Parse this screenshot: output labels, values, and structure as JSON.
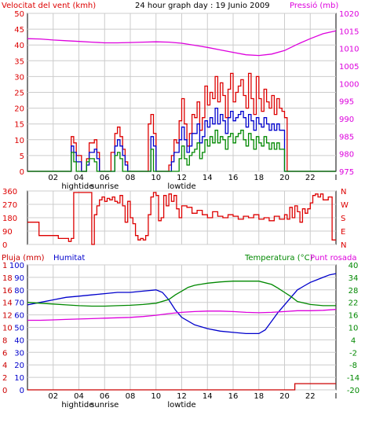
{
  "colors": {
    "wind": "#dd0000",
    "pressure": "#dd00dd",
    "direction": "#dd0000",
    "rain": "#cc0000",
    "humidity": "#0000cc",
    "temperature": "#008800",
    "dewpoint": "#dd00dd",
    "gust": "#dd0000",
    "wind_avg": "#0000cc",
    "wind_low": "#008800",
    "grid": "#cccccc",
    "axis": "#000000"
  },
  "top_panel": {
    "title": "24 hour graph day : 19 Junio 2009",
    "left_label": "Velocitat del vent (kmh)",
    "right_label": "Pressió (mb)"
  },
  "mid_panel": {
    "right_labels": [
      "N",
      "W",
      "S",
      "E",
      "N"
    ]
  },
  "bottom_panel": {
    "rain_label": "Pluja (mm)",
    "humidity_label": "Humitat",
    "temp_label": "Temperatura (°C)",
    "dew_label": "Punt rosada"
  },
  "x_axis": {
    "tick_labels": [
      "02",
      "04",
      "06",
      "08",
      "10",
      "12",
      "14",
      "16",
      "18",
      "20",
      "22",
      "I"
    ],
    "events": [
      {
        "label": "hightide",
        "hour": 3.9
      },
      {
        "label": "sunrise",
        "hour": 6.0
      },
      {
        "label": "lowtide",
        "hour": 12.0
      }
    ]
  },
  "chart_data": [
    {
      "type": "line",
      "name": "wind",
      "x_unit": "hour",
      "xlim": [
        0,
        24
      ],
      "ylim_left": [
        0,
        50
      ],
      "ylim_right": [
        975,
        1020
      ],
      "left_ticks": [
        0,
        5,
        10,
        15,
        20,
        25,
        30,
        35,
        40,
        45,
        50
      ],
      "right_ticks": [
        975,
        980,
        985,
        990,
        995,
        1000,
        1005,
        1010,
        1015,
        1020
      ],
      "series": [
        {
          "key": "gust",
          "color": "#dd0000",
          "axis": "left",
          "x": [
            0,
            1.4,
            1.5,
            1.6,
            1.8,
            2.0,
            2.6,
            3.2,
            3.4,
            3.6,
            3.8,
            4.2,
            4.4,
            4.6,
            4.8,
            5.2,
            5.4,
            5.6,
            5.8,
            6.0,
            6.3,
            6.5,
            6.8,
            7.0,
            7.2,
            7.4,
            7.6,
            7.8,
            8.0,
            8.2,
            8.4,
            8.6,
            8.8,
            9.0,
            9.4,
            9.6,
            9.8,
            10.0,
            10.2,
            10.4,
            10.6,
            10.8,
            11.0,
            11.2,
            11.4,
            11.6,
            11.8,
            12.0,
            12.2,
            12.4,
            12.6,
            12.8,
            13.0,
            13.2,
            13.4,
            13.6,
            13.8,
            14.0,
            14.2,
            14.4,
            14.6,
            14.8,
            15.0,
            15.2,
            15.4,
            15.6,
            15.8,
            16.0,
            16.2,
            16.4,
            16.6,
            16.8,
            17.0,
            17.2,
            17.4,
            17.6,
            17.8,
            18.0,
            18.2,
            18.4,
            18.6,
            18.8,
            19.0,
            19.2,
            19.4,
            19.6,
            19.8,
            20.0,
            20.2,
            20.4,
            20.6,
            20.8,
            21.0,
            21.2,
            21.4,
            24
          ],
          "y": [
            0,
            0,
            0,
            0,
            0,
            0,
            0,
            0,
            11,
            9,
            5,
            0,
            0,
            4,
            9,
            10,
            6,
            0,
            0,
            0,
            0,
            6,
            12,
            14,
            11,
            7,
            3,
            0,
            0,
            0,
            0,
            0,
            0,
            0,
            15,
            18,
            12,
            0,
            0,
            0,
            0,
            0,
            2,
            5,
            10,
            9,
            16,
            23,
            15,
            8,
            12,
            18,
            17,
            22,
            13,
            17,
            27,
            21,
            25,
            23,
            30,
            22,
            28,
            24,
            17,
            26,
            31,
            22,
            25,
            27,
            29,
            24,
            20,
            31,
            23,
            18,
            30,
            23,
            19,
            26,
            22,
            20,
            24,
            18,
            23,
            20,
            19,
            17,
            0,
            0,
            0,
            0,
            0,
            0,
            0,
            0
          ]
        },
        {
          "key": "average",
          "color": "#0000cc",
          "axis": "left",
          "x": [
            0,
            3.2,
            3.4,
            3.6,
            3.8,
            4.2,
            4.6,
            4.8,
            5.2,
            5.4,
            5.6,
            6.5,
            6.8,
            7.0,
            7.2,
            7.4,
            7.6,
            7.8,
            9.4,
            9.6,
            9.8,
            10.0,
            11.0,
            11.2,
            11.4,
            11.6,
            11.8,
            12.0,
            12.2,
            12.4,
            12.6,
            12.8,
            13.0,
            13.2,
            13.4,
            13.6,
            13.8,
            14.0,
            14.2,
            14.4,
            14.6,
            14.8,
            15.0,
            15.2,
            15.4,
            15.6,
            15.8,
            16.0,
            16.2,
            16.4,
            16.6,
            16.8,
            17.0,
            17.2,
            17.4,
            17.6,
            17.8,
            18.0,
            18.2,
            18.4,
            18.6,
            18.8,
            19.0,
            19.2,
            19.4,
            19.6,
            19.8,
            20.0,
            20.2,
            24
          ],
          "y": [
            0,
            0,
            8,
            6,
            3,
            0,
            2,
            6,
            7,
            4,
            0,
            0,
            8,
            10,
            8,
            5,
            2,
            0,
            0,
            11,
            8,
            0,
            0,
            3,
            6,
            6,
            10,
            14,
            10,
            6,
            8,
            12,
            12,
            15,
            9,
            11,
            16,
            14,
            17,
            15,
            20,
            15,
            18,
            16,
            12,
            17,
            19,
            16,
            17,
            18,
            19,
            17,
            14,
            18,
            16,
            13,
            17,
            15,
            14,
            17,
            15,
            13,
            15,
            13,
            15,
            13,
            13,
            0,
            0,
            0
          ]
        },
        {
          "key": "low",
          "color": "#008800",
          "axis": "left",
          "x": [
            0,
            3.4,
            3.6,
            3.8,
            4.6,
            4.8,
            5.2,
            5.4,
            6.8,
            7.0,
            7.2,
            7.4,
            9.6,
            9.8,
            11.8,
            12.0,
            12.2,
            12.4,
            12.6,
            12.8,
            13.0,
            13.2,
            13.4,
            13.6,
            13.8,
            14.0,
            14.2,
            14.4,
            14.6,
            14.8,
            15.0,
            15.2,
            15.4,
            15.6,
            15.8,
            16.0,
            16.2,
            16.4,
            16.6,
            16.8,
            17.0,
            17.2,
            17.4,
            17.6,
            17.8,
            18.0,
            18.2,
            18.4,
            18.6,
            18.8,
            19.0,
            19.2,
            19.4,
            19.6,
            19.8,
            20.0,
            24
          ],
          "y": [
            0,
            6,
            3,
            0,
            3,
            4,
            3,
            0,
            5,
            6,
            4,
            0,
            7,
            0,
            4,
            8,
            4,
            2,
            5,
            6,
            7,
            9,
            4,
            6,
            10,
            8,
            11,
            9,
            13,
            9,
            11,
            10,
            7,
            11,
            12,
            9,
            11,
            12,
            13,
            10,
            8,
            12,
            10,
            7,
            11,
            9,
            8,
            11,
            9,
            7,
            9,
            7,
            9,
            7,
            7,
            0,
            0
          ]
        },
        {
          "key": "pressure",
          "color": "#dd00dd",
          "axis": "right",
          "x": [
            0,
            1,
            2,
            3,
            4,
            5,
            6,
            7,
            8,
            9,
            10,
            11,
            12,
            13,
            14,
            15,
            16,
            17,
            18,
            19,
            20,
            21,
            22,
            23,
            24
          ],
          "y": [
            1012.8,
            1012.7,
            1012.4,
            1012.2,
            1012.0,
            1011.8,
            1011.6,
            1011.6,
            1011.7,
            1011.8,
            1011.9,
            1011.8,
            1011.5,
            1010.9,
            1010.3,
            1009.6,
            1008.9,
            1008.2,
            1008.0,
            1008.4,
            1009.4,
            1011.2,
            1012.8,
            1014.2,
            1015.0
          ]
        }
      ]
    },
    {
      "type": "line",
      "name": "wind_direction",
      "x_unit": "hour",
      "xlim": [
        0,
        24
      ],
      "ylim": [
        0,
        360
      ],
      "ticks": [
        0,
        90,
        180,
        270,
        360
      ],
      "series": [
        {
          "key": "direction",
          "color": "#dd0000",
          "x": [
            0,
            0.5,
            0.9,
            1.0,
            2.0,
            2.4,
            2.8,
            3.2,
            3.4,
            3.6,
            4.4,
            4.6,
            5.0,
            5.2,
            5.4,
            5.6,
            5.8,
            6.0,
            6.2,
            6.4,
            6.6,
            6.8,
            7.0,
            7.2,
            7.4,
            7.6,
            7.8,
            8.0,
            8.2,
            8.4,
            8.6,
            8.8,
            9.0,
            9.2,
            9.4,
            9.6,
            9.8,
            10.0,
            10.2,
            10.4,
            10.6,
            10.8,
            11.0,
            11.2,
            11.4,
            11.6,
            11.8,
            12.0,
            12.4,
            12.8,
            13.2,
            13.6,
            14.0,
            14.4,
            14.8,
            15.2,
            15.6,
            16.0,
            16.4,
            16.8,
            17.2,
            17.6,
            18.0,
            18.4,
            18.8,
            19.2,
            19.6,
            20.0,
            20.2,
            20.4,
            20.6,
            20.8,
            21.0,
            21.2,
            21.4,
            21.6,
            21.8,
            22.0,
            22.2,
            22.4,
            22.6,
            22.8,
            23.0,
            23.4,
            23.7,
            24
          ],
          "y": [
            150,
            150,
            60,
            60,
            60,
            40,
            40,
            20,
            40,
            350,
            350,
            350,
            0,
            200,
            260,
            300,
            320,
            290,
            310,
            300,
            320,
            290,
            280,
            330,
            260,
            150,
            290,
            180,
            140,
            60,
            30,
            40,
            30,
            60,
            200,
            320,
            350,
            330,
            160,
            180,
            330,
            260,
            340,
            290,
            330,
            240,
            180,
            260,
            250,
            210,
            230,
            200,
            180,
            220,
            190,
            180,
            200,
            190,
            170,
            190,
            180,
            200,
            170,
            180,
            160,
            190,
            170,
            200,
            170,
            250,
            180,
            260,
            220,
            150,
            240,
            210,
            240,
            280,
            330,
            340,
            320,
            340,
            300,
            320,
            30,
            30
          ]
        }
      ]
    },
    {
      "type": "line",
      "name": "humidity_temperature",
      "x_unit": "hour",
      "xlim": [
        0,
        24
      ],
      "ylim_humidity": [
        0,
        100
      ],
      "ylim_rain": [
        0,
        1
      ],
      "ylim_temp": [
        -20,
        40
      ],
      "humidity_ticks": [
        0,
        10,
        20,
        30,
        40,
        50,
        60,
        70,
        80,
        90,
        100
      ],
      "rain_ticks": [
        "0",
        "2",
        "4",
        "6",
        "8",
        "10",
        "12",
        "14",
        "16",
        "18",
        "1"
      ],
      "temp_ticks": [
        -20,
        -14,
        -8,
        -2,
        4,
        10,
        16,
        22,
        28,
        34,
        40
      ],
      "series": [
        {
          "key": "humidity",
          "color": "#0000cc",
          "axis": "humidity",
          "x": [
            0,
            1,
            2,
            3,
            4,
            5,
            6,
            7,
            8,
            9,
            10,
            10.5,
            11,
            11.5,
            12,
            13,
            14,
            15,
            16,
            17,
            17.5,
            18,
            18.5,
            19,
            19.5,
            20,
            20.5,
            21,
            21.5,
            22,
            22.5,
            23,
            23.5,
            24
          ],
          "y": [
            68,
            70,
            72,
            74,
            75,
            76,
            77,
            78,
            78,
            79,
            80,
            78,
            72,
            64,
            58,
            52,
            49,
            47,
            46,
            45,
            45,
            45,
            48,
            55,
            62,
            68,
            74,
            80,
            83,
            86,
            88,
            90,
            92,
            93
          ]
        },
        {
          "key": "temperature",
          "color": "#008800",
          "axis": "temp",
          "x": [
            0,
            1,
            2,
            3,
            4,
            5,
            6,
            7,
            8,
            9,
            10,
            11,
            11.5,
            12,
            12.5,
            13,
            14,
            15,
            16,
            17,
            18,
            19,
            19.5,
            20,
            20.5,
            21,
            22,
            23,
            24
          ],
          "y": [
            22.0,
            21.6,
            21.2,
            20.8,
            20.4,
            20.2,
            20.2,
            20.4,
            20.6,
            21.0,
            21.6,
            23.4,
            25.6,
            27.4,
            29.2,
            30.2,
            31.2,
            31.8,
            32.2,
            32.2,
            32.2,
            30.6,
            28.8,
            26.8,
            24.8,
            22.4,
            21.0,
            20.4,
            20.4
          ]
        },
        {
          "key": "dewpoint",
          "color": "#dd00dd",
          "axis": "temp",
          "x": [
            0,
            1,
            2,
            3,
            4,
            5,
            6,
            7,
            8,
            9,
            10,
            11,
            12,
            13,
            14,
            15,
            16,
            17,
            18,
            19,
            20,
            21,
            22,
            23,
            24
          ],
          "y": [
            13.4,
            13.4,
            13.6,
            13.8,
            14.0,
            14.2,
            14.4,
            14.6,
            14.8,
            15.2,
            15.8,
            16.6,
            17.2,
            17.6,
            17.8,
            17.8,
            17.6,
            17.2,
            17.0,
            17.2,
            17.6,
            18.0,
            18.0,
            18.2,
            18.6
          ]
        },
        {
          "key": "rain",
          "color": "#cc0000",
          "axis": "rain",
          "x": [
            0,
            20.7,
            20.8,
            23.8,
            24
          ],
          "y": [
            0.0,
            0.0,
            0.05,
            0.05,
            0.05
          ]
        }
      ]
    }
  ]
}
